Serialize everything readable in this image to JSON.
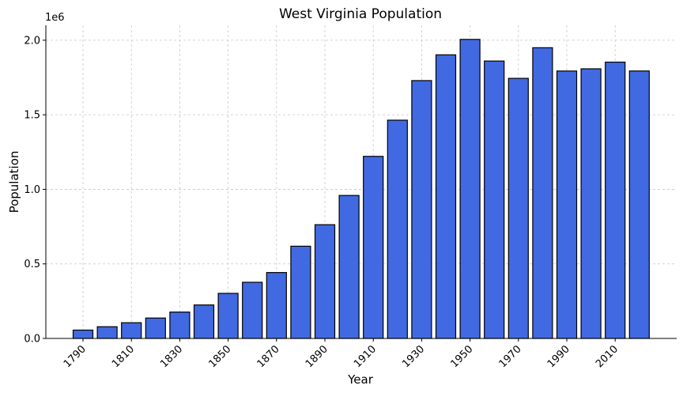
{
  "chart_data": {
    "type": "bar",
    "title": "West Virginia Population",
    "xlabel": "Year",
    "ylabel": "Population",
    "y_scale_label": "1e6",
    "y_scale_factor": 1000000,
    "ylim": [
      0,
      2100000
    ],
    "y_ticks": [
      0,
      500000,
      1000000,
      1500000,
      2000000
    ],
    "y_tick_labels": [
      "0.0",
      "0.5",
      "1.0",
      "1.5",
      "2.0"
    ],
    "x_tick_labels": [
      "1790",
      "1810",
      "1830",
      "1850",
      "1870",
      "1890",
      "1910",
      "1930",
      "1950",
      "1970",
      "1990",
      "2010"
    ],
    "grid": true,
    "bar_color": "#4169e1",
    "edge_color": "#000000",
    "categories": [
      "1790",
      "1800",
      "1810",
      "1820",
      "1830",
      "1840",
      "1850",
      "1860",
      "1870",
      "1880",
      "1890",
      "1900",
      "1910",
      "1920",
      "1930",
      "1940",
      "1950",
      "1960",
      "1970",
      "1980",
      "1990",
      "2000",
      "2010",
      "2020"
    ],
    "values": [
      55873,
      78592,
      105469,
      136808,
      176924,
      224537,
      302313,
      376688,
      442014,
      618457,
      762794,
      958800,
      1221119,
      1463701,
      1729205,
      1901974,
      2005552,
      1860421,
      1744237,
      1949644,
      1793477,
      1808344,
      1852994,
      1793716
    ]
  }
}
